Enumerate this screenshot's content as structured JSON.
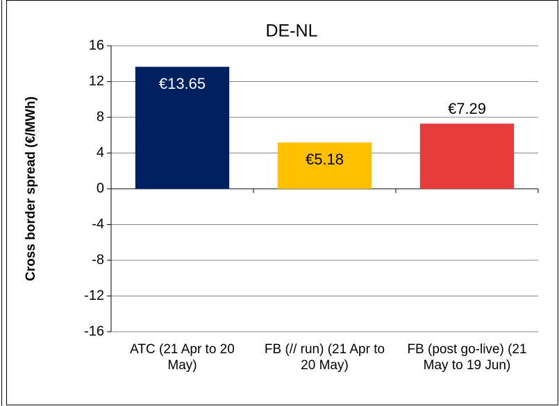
{
  "chart_data": {
    "type": "bar",
    "title": "DE-NL",
    "y_label": "Cross border spread (€/MWh)",
    "categories": [
      "ATC (21 Apr to 20 May)",
      "FB (// run) (21 Apr to 20 May)",
      "FB (post go-live) (21 May to 19 Jun)"
    ],
    "values": [
      13.65,
      5.18,
      7.29
    ],
    "value_labels": [
      "€13.65",
      "€5.18",
      "€7.29"
    ],
    "colors": [
      "#002060",
      "#ffc000",
      "#e63c3c"
    ],
    "ylim": [
      -16,
      16
    ],
    "yticks": [
      -16,
      -12,
      -8,
      -4,
      0,
      4,
      8,
      12,
      16
    ],
    "grid": true
  }
}
